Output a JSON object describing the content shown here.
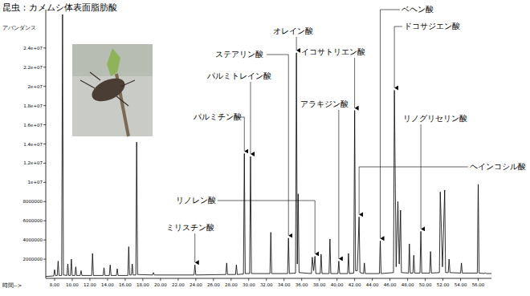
{
  "chart_data": {
    "type": "line",
    "title": "昆虫：カメムシ体表面脂肪酸",
    "y_label": "アバンダンス",
    "x_label": "時間-->",
    "color": "#000000",
    "xlim": [
      7.0,
      57.5
    ],
    "ylim": [
      0,
      28000000
    ],
    "xticks": [
      {
        "value": 8,
        "label": "8.00"
      },
      {
        "value": 10,
        "label": "10.00"
      },
      {
        "value": 12,
        "label": "12.00"
      },
      {
        "value": 14,
        "label": "14.00"
      },
      {
        "value": 16,
        "label": "16.00"
      },
      {
        "value": 18,
        "label": "18.00"
      },
      {
        "value": 20,
        "label": "20.00"
      },
      {
        "value": 22,
        "label": "22.00"
      },
      {
        "value": 24,
        "label": "24.00"
      },
      {
        "value": 26,
        "label": "26.00"
      },
      {
        "value": 28,
        "label": "28.00"
      },
      {
        "value": 30,
        "label": "30.00"
      },
      {
        "value": 32,
        "label": "32.00"
      },
      {
        "value": 34,
        "label": "34.00"
      },
      {
        "value": 36,
        "label": "36.00"
      },
      {
        "value": 38,
        "label": "38.00"
      },
      {
        "value": 40,
        "label": "40.00"
      },
      {
        "value": 42,
        "label": "42.00"
      },
      {
        "value": 44,
        "label": "44.00"
      },
      {
        "value": 46,
        "label": "46.00"
      },
      {
        "value": 48,
        "label": "48.00"
      },
      {
        "value": 50,
        "label": "50.00"
      },
      {
        "value": 52,
        "label": "52.00"
      },
      {
        "value": 54,
        "label": "54.00"
      },
      {
        "value": 56,
        "label": "56.00"
      }
    ],
    "yticks": [
      2000000,
      4000000,
      6000000,
      8000000,
      {
        "value": 10000000,
        "label": "1e+07"
      },
      {
        "value": 12000000,
        "label": "1.2e+07"
      },
      {
        "value": 14000000,
        "label": "1.4e+07"
      },
      {
        "value": 16000000,
        "label": "1.6e+07"
      },
      {
        "value": 18000000,
        "label": "1.8e+07"
      },
      {
        "value": 20000000,
        "label": "2e+07"
      },
      {
        "value": 22000000,
        "label": "2.2e+07"
      },
      {
        "value": 24000000,
        "label": "2.4e+07"
      }
    ],
    "grid": false,
    "x": [
      7.0,
      7.9,
      8.0,
      8.1,
      8.3,
      8.4,
      8.5,
      8.8,
      8.9,
      9.0,
      9.4,
      9.5,
      9.6,
      9.8,
      9.9,
      10.0,
      10.3,
      10.4,
      10.5,
      10.9,
      11.0,
      11.1,
      12.2,
      12.3,
      12.4,
      13.5,
      13.6,
      13.7,
      14.2,
      14.3,
      14.4,
      15.0,
      15.1,
      15.2,
      16.3,
      16.4,
      16.5,
      16.7,
      16.8,
      16.9,
      17.2,
      17.3,
      17.4,
      19.1,
      19.2,
      19.3,
      23.8,
      23.9,
      24.0,
      27.4,
      27.5,
      27.6,
      28.5,
      28.6,
      28.7,
      29.4,
      29.5,
      29.6,
      30.1,
      30.2,
      30.3,
      32.4,
      32.5,
      32.6,
      34.4,
      34.5,
      34.6,
      35.3,
      35.4,
      35.5,
      35.6,
      35.7,
      37.1,
      37.2,
      37.35,
      37.5,
      37.6,
      38.1,
      38.2,
      38.3,
      39.1,
      39.2,
      39.3,
      40.1,
      40.2,
      40.3,
      41.2,
      41.3,
      41.4,
      41.9,
      42.0,
      42.1,
      42.3,
      42.5,
      42.6,
      43.0,
      43.1,
      43.2,
      44.8,
      44.9,
      45.0,
      46.4,
      46.5,
      46.7,
      46.9,
      47.05,
      47.2,
      47.3,
      48.1,
      48.2,
      48.3,
      48.6,
      48.7,
      48.8,
      49.4,
      49.5,
      49.6,
      50.5,
      50.6,
      50.7,
      51.6,
      51.7,
      51.95,
      52.2,
      52.3,
      52.6,
      52.7,
      52.8,
      54.0,
      54.1,
      54.2,
      55.9,
      56.0,
      56.1,
      56.7,
      56.8,
      56.9,
      57.5
    ],
    "values": [
      200000,
      250000,
      900000,
      300000,
      300000,
      1800000,
      300000,
      300000,
      27500000,
      350000,
      300000,
      1500000,
      300000,
      300000,
      2000000,
      300000,
      300000,
      1200000,
      300000,
      300000,
      800000,
      300000,
      300000,
      2600000,
      300000,
      300000,
      1100000,
      300000,
      300000,
      1400000,
      300000,
      300000,
      1000000,
      300000,
      300000,
      3300000,
      350000,
      350000,
      1500000,
      350000,
      350000,
      14200000,
      400000,
      350000,
      600000,
      350000,
      350000,
      1400000,
      350000,
      400000,
      1600000,
      400000,
      400000,
      1400000,
      400000,
      450000,
      13000000,
      500000,
      500000,
      12700000,
      500000,
      500000,
      4800000,
      500000,
      500000,
      4200000,
      500000,
      550000,
      23500000,
      1500000,
      8800000,
      600000,
      500000,
      2200000,
      800000,
      2300000,
      500000,
      500000,
      2500000,
      500000,
      500000,
      4100000,
      500000,
      500000,
      1800000,
      500000,
      500000,
      2600000,
      500000,
      550000,
      17500000,
      800000,
      800000,
      6400000,
      600000,
      500000,
      1600000,
      500000,
      500000,
      3900000,
      500000,
      600000,
      19600000,
      1200000,
      8000000,
      1500000,
      7100000,
      600000,
      550000,
      3600000,
      550000,
      550000,
      2400000,
      550000,
      550000,
      4900000,
      550000,
      550000,
      2800000,
      550000,
      600000,
      9000000,
      1200000,
      9200000,
      600000,
      600000,
      2000000,
      600000,
      550000,
      1600000,
      550000,
      550000,
      9800000,
      550000,
      500000,
      600000,
      500000,
      500000
    ],
    "annotations": [
      {
        "text": "ミリスチン酸",
        "x": 23.9,
        "y": 1400000
      },
      {
        "text": "パルミチン酸",
        "x": 29.5,
        "y": 13000000
      },
      {
        "text": "パルミトレイン酸",
        "x": 30.2,
        "y": 12700000
      },
      {
        "text": "ステアリン酸",
        "x": 34.5,
        "y": 4200000
      },
      {
        "text": "オレイン酸",
        "x": 35.4,
        "y": 23500000
      },
      {
        "text": "イコサトリエン酸",
        "x": 42.0,
        "y": 17500000
      },
      {
        "text": "アラキジン酸",
        "x": 40.2,
        "y": 1800000
      },
      {
        "text": "リノレン酸",
        "x": 37.5,
        "y": 2300000
      },
      {
        "text": "ベヘン酸",
        "x": 44.9,
        "y": 3900000
      },
      {
        "text": "ドコサジエン酸",
        "x": 46.5,
        "y": 19600000
      },
      {
        "text": "リノグリセリン酸",
        "x": 49.5,
        "y": 4900000
      },
      {
        "text": "ヘインコシル酸",
        "x": 42.5,
        "y": 6400000
      }
    ]
  }
}
